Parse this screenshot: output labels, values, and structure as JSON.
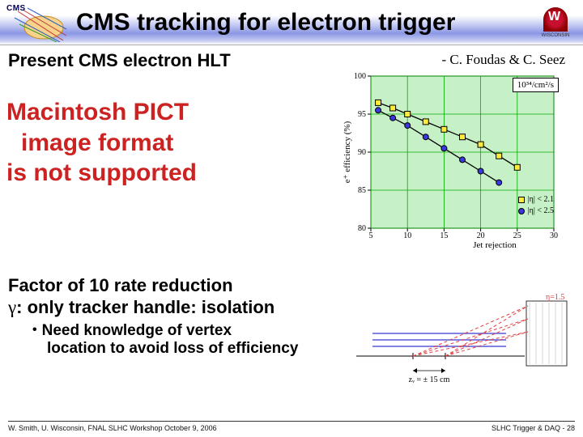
{
  "title": "CMS tracking for electron trigger",
  "cms_label": "CMS",
  "uw_label": "WISCONSIN",
  "subtitle_left": "Present CMS electron HLT",
  "credit": "- C. Foudas & C. Seez",
  "pict_placeholder": {
    "line1": "Macintosh PICT",
    "line2": "image format",
    "line3": "is not supported"
  },
  "chart": {
    "type": "line",
    "background_color": "#c6f0c6",
    "grid_color": "#00aa00",
    "plot_bg": "#c6f0c6",
    "xlim": [
      5,
      30
    ],
    "xtick_step": 5,
    "ylim": [
      80,
      100
    ],
    "ytick_step": 5,
    "ylabel": "e⁺ efficiency (%)",
    "xlabel": "Jet rejection",
    "label_fontsize": 11,
    "tick_fontsize": 10,
    "line_color": "#000000",
    "line_width": 1.3,
    "marker_border": "#000000",
    "series": [
      {
        "name": "|η| < 2.1",
        "marker": "square",
        "marker_color": "#ffeb3b",
        "x": [
          6,
          8,
          10,
          12.5,
          15,
          17.5,
          20,
          22.5,
          25
        ],
        "y": [
          96.5,
          95.8,
          95,
          94,
          93,
          92,
          91,
          89.5,
          88
        ]
      },
      {
        "name": "|η| < 2.5",
        "marker": "circle",
        "marker_color": "#3838e0",
        "x": [
          6,
          8,
          10,
          12.5,
          15,
          17.5,
          20,
          22.5
        ],
        "y": [
          95.5,
          94.5,
          93.5,
          92,
          90.5,
          89,
          87.5,
          86
        ]
      }
    ],
    "lumi_label": "10³⁴/cm²/s"
  },
  "body": {
    "line1": "Factor of 10 rate reduction",
    "line2a": "γ",
    "line2b": ": only tracker handle: isolation",
    "bullet1a": "Need knowledge of vertex",
    "bullet1b": "location to avoid loss of efficiency"
  },
  "detector": {
    "eta_lines_color": "#e04040",
    "tracker_color": "#5858d8",
    "axis_color": "#000000",
    "dash": "4,3",
    "eta_label_top": "η=1.5",
    "vertex_label": "zᵥ = ± 15 cm"
  },
  "footer": {
    "left": "W. Smith, U. Wisconsin, FNAL SLHC Workshop October 9, 2006",
    "right": "SLHC Trigger & DAQ -  28"
  },
  "colors": {
    "title_header_mid": "#8a96e4",
    "pict_red": "#cc2222"
  }
}
